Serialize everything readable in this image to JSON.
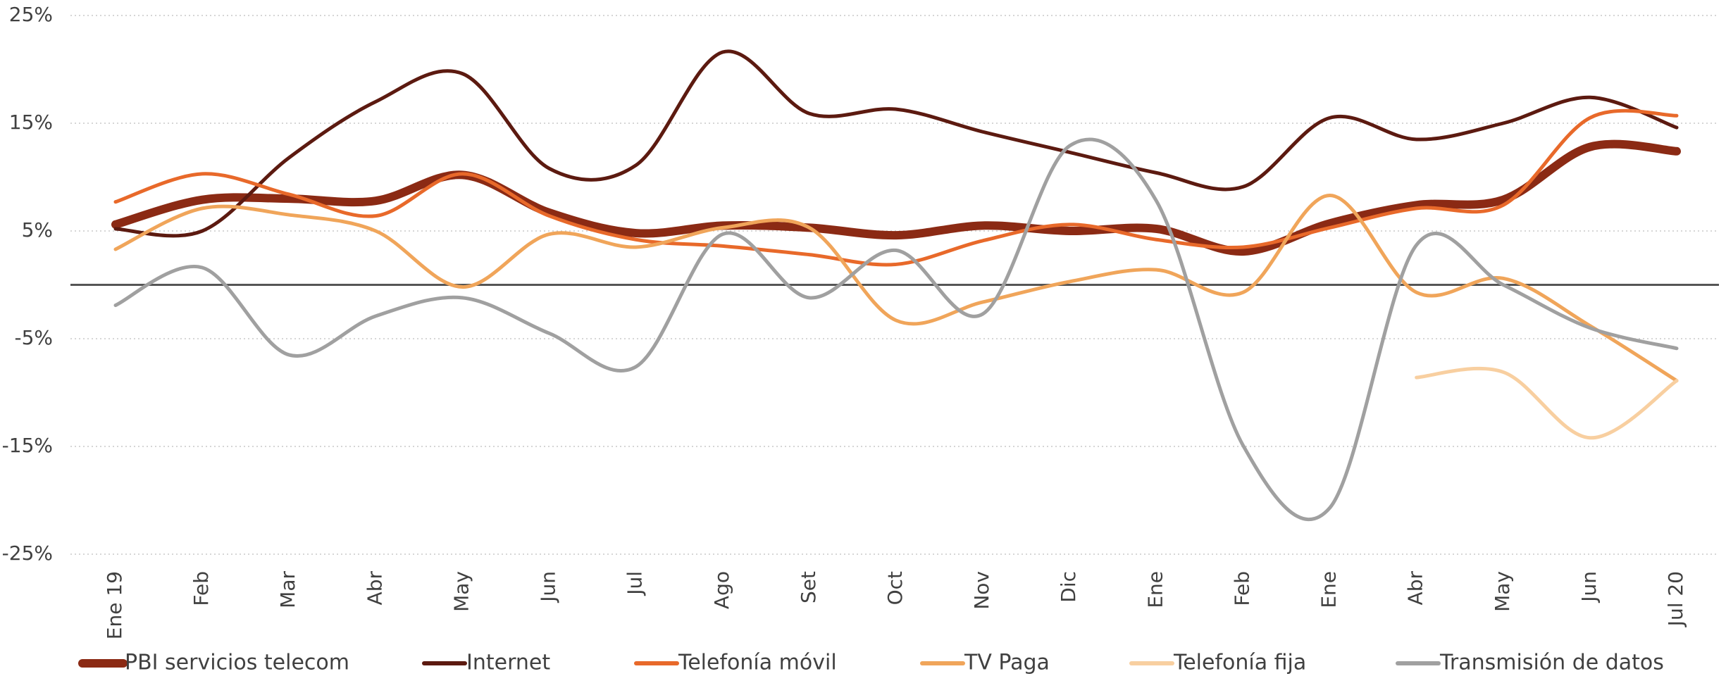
{
  "chart_data": {
    "type": "line",
    "categories": [
      "Ene 19",
      "Feb",
      "Mar",
      "Abr",
      "May",
      "Jun",
      "Jul",
      "Ago",
      "Set",
      "Oct",
      "Nov",
      "Dic",
      "Ene",
      "Feb",
      "Ene",
      "Abr",
      "May",
      "Jun",
      "Jul 20"
    ],
    "ylim": [
      -25,
      25
    ],
    "yticks": [
      {
        "value": -25,
        "label": "-25%"
      },
      {
        "value": -15,
        "label": "-15%"
      },
      {
        "value": -5,
        "label": "-5%"
      },
      {
        "value": 5,
        "label": "5%"
      },
      {
        "value": 15,
        "label": "15%"
      },
      {
        "value": 25,
        "label": "25%"
      }
    ],
    "grid": true,
    "legend": "bottom",
    "series": [
      {
        "name": "PBI servicios telecom",
        "color": "#8b2a14",
        "values": [
          5.6,
          7.9,
          8.0,
          7.8,
          10.2,
          6.7,
          4.8,
          5.5,
          5.3,
          4.6,
          5.5,
          5.0,
          5.2,
          3.1,
          5.7,
          7.4,
          7.9,
          12.8,
          12.4
        ]
      },
      {
        "name": "Internet",
        "color": "#5c1a10",
        "values": [
          5.2,
          5.0,
          11.8,
          17.0,
          19.6,
          10.8,
          11.1,
          21.6,
          15.9,
          16.3,
          14.2,
          12.3,
          10.4,
          9.1,
          15.5,
          13.5,
          15.0,
          17.4,
          14.6
        ]
      },
      {
        "name": "Telefonía móvil",
        "color": "#e8692a",
        "values": [
          7.7,
          10.3,
          8.4,
          6.4,
          10.3,
          6.4,
          4.2,
          3.6,
          2.8,
          1.9,
          4.1,
          5.6,
          4.2,
          3.5,
          5.3,
          7.1,
          7.4,
          15.5,
          15.7
        ]
      },
      {
        "name": "TV Paga",
        "color": "#f0a55a",
        "values": [
          3.3,
          7.1,
          6.5,
          5.0,
          -0.2,
          4.7,
          3.5,
          5.3,
          5.3,
          -3.3,
          -1.6,
          0.3,
          1.4,
          -0.7,
          8.3,
          -0.7,
          0.6,
          -3.8,
          -8.9
        ]
      },
      {
        "name": "Telefonía fija",
        "color": "#f8cfa0",
        "values": [
          null,
          null,
          null,
          null,
          null,
          null,
          null,
          null,
          null,
          null,
          null,
          null,
          null,
          null,
          null,
          -8.6,
          -8.1,
          -14.2,
          -8.9
        ]
      },
      {
        "name": "Transmisión de datos",
        "color": "#a0a0a0",
        "values": [
          -1.9,
          1.6,
          -6.5,
          -2.9,
          -1.2,
          -4.5,
          -7.6,
          4.7,
          -1.2,
          3.2,
          -2.7,
          12.9,
          7.8,
          -14.9,
          -20.7,
          3.7,
          0.0,
          -4.0,
          -5.9
        ]
      }
    ]
  }
}
